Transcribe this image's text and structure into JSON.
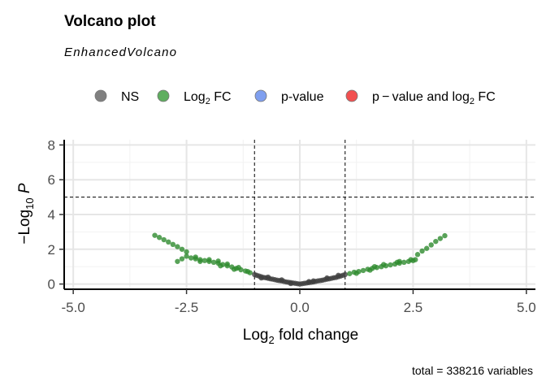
{
  "chart_data": {
    "type": "scatter",
    "title": "Volcano plot",
    "subtitle": "EnhancedVolcano",
    "xlabel": {
      "pre": "Log",
      "sub": "2",
      "post": " fold change"
    },
    "ylabel": {
      "pre": "−Log",
      "sub": "10",
      "post": " P"
    },
    "caption": "total = 338216 variables",
    "xlim": [
      -5.2,
      5.2
    ],
    "ylim": [
      -0.3,
      8.3
    ],
    "x_ticks": [
      -5.0,
      -2.5,
      0.0,
      2.5,
      5.0
    ],
    "x_tick_labels": [
      "-5.0",
      "-2.5",
      "0.0",
      "2.5",
      "5.0"
    ],
    "y_ticks": [
      0,
      2,
      4,
      6,
      8
    ],
    "y_tick_labels": [
      "0",
      "2",
      "4",
      "6",
      "8"
    ],
    "cutoffs": {
      "fc": 1.0,
      "p_log10": 5.0
    },
    "legend_position": "top",
    "legend": [
      {
        "pre": "NS",
        "sub": "",
        "post": "",
        "color": "#808080"
      },
      {
        "pre": "Log",
        "sub": "2",
        "post": " FC",
        "color": "#5fae5f"
      },
      {
        "pre": "p-value",
        "sub": "",
        "post": "",
        "color": "#7f9fef"
      },
      {
        "pre": "p − value and log",
        "sub": "2",
        "post": " FC",
        "color": "#f25050"
      }
    ],
    "series": [
      {
        "name": "NS",
        "color": "#404040",
        "points": [
          [
            -1.0,
            0.55
          ],
          [
            -0.95,
            0.5
          ],
          [
            -0.9,
            0.46
          ],
          [
            -0.85,
            0.42
          ],
          [
            -0.8,
            0.38
          ],
          [
            -0.75,
            0.36
          ],
          [
            -0.7,
            0.33
          ],
          [
            -0.65,
            0.3
          ],
          [
            -0.6,
            0.28
          ],
          [
            -0.55,
            0.25
          ],
          [
            -0.5,
            0.22
          ],
          [
            -0.45,
            0.2
          ],
          [
            -0.4,
            0.18
          ],
          [
            -0.35,
            0.15
          ],
          [
            -0.3,
            0.12
          ],
          [
            -0.25,
            0.1
          ],
          [
            -0.2,
            0.08
          ],
          [
            -0.15,
            0.06
          ],
          [
            -0.1,
            0.04
          ],
          [
            -0.05,
            0.02
          ],
          [
            0.0,
            0.0
          ],
          [
            0.05,
            0.02
          ],
          [
            0.1,
            0.04
          ],
          [
            0.15,
            0.06
          ],
          [
            0.2,
            0.08
          ],
          [
            0.25,
            0.1
          ],
          [
            0.3,
            0.12
          ],
          [
            0.35,
            0.15
          ],
          [
            0.4,
            0.18
          ],
          [
            0.45,
            0.2
          ],
          [
            0.5,
            0.22
          ],
          [
            0.55,
            0.25
          ],
          [
            0.6,
            0.28
          ],
          [
            0.65,
            0.3
          ],
          [
            0.7,
            0.33
          ],
          [
            0.75,
            0.36
          ],
          [
            0.8,
            0.38
          ],
          [
            0.85,
            0.42
          ],
          [
            0.9,
            0.46
          ],
          [
            0.95,
            0.5
          ],
          [
            1.0,
            0.55
          ],
          [
            -0.7,
            0.4
          ],
          [
            -0.4,
            0.24
          ],
          [
            0.3,
            0.18
          ],
          [
            0.6,
            0.35
          ],
          [
            0.85,
            0.5
          ],
          [
            -0.85,
            0.35
          ],
          [
            -0.2,
            0.03
          ],
          [
            0.2,
            0.14
          ]
        ]
      },
      {
        "name": "Log2 FC",
        "color": "#2e8b2e",
        "points": [
          [
            -3.2,
            2.8
          ],
          [
            -3.1,
            2.68
          ],
          [
            -3.0,
            2.55
          ],
          [
            -2.9,
            2.42
          ],
          [
            -2.8,
            2.28
          ],
          [
            -2.7,
            2.15
          ],
          [
            -2.6,
            2.0
          ],
          [
            -2.5,
            1.85
          ],
          [
            -2.5,
            1.6
          ],
          [
            -2.4,
            1.5
          ],
          [
            -2.3,
            1.45
          ],
          [
            -2.2,
            1.4
          ],
          [
            -2.1,
            1.35
          ],
          [
            -2.0,
            1.3
          ],
          [
            -1.9,
            1.25
          ],
          [
            -1.8,
            1.2
          ],
          [
            -1.7,
            1.12
          ],
          [
            -1.6,
            1.05
          ],
          [
            -1.5,
            0.98
          ],
          [
            -1.4,
            0.9
          ],
          [
            -1.3,
            0.82
          ],
          [
            -1.2,
            0.75
          ],
          [
            -1.1,
            0.65
          ],
          [
            -2.6,
            1.45
          ],
          [
            -2.3,
            1.55
          ],
          [
            -2.0,
            1.4
          ],
          [
            -1.8,
            1.32
          ],
          [
            -1.6,
            1.15
          ],
          [
            -1.35,
            0.95
          ],
          [
            -1.15,
            0.72
          ],
          [
            -2.7,
            1.3
          ],
          [
            -2.2,
            1.3
          ],
          [
            -1.75,
            1.05
          ],
          [
            -1.45,
            0.85
          ],
          [
            1.1,
            0.6
          ],
          [
            1.2,
            0.68
          ],
          [
            1.3,
            0.72
          ],
          [
            1.4,
            0.78
          ],
          [
            1.5,
            0.85
          ],
          [
            1.6,
            0.9
          ],
          [
            1.7,
            0.95
          ],
          [
            1.8,
            1.0
          ],
          [
            1.9,
            1.05
          ],
          [
            2.0,
            1.1
          ],
          [
            2.1,
            1.15
          ],
          [
            2.2,
            1.2
          ],
          [
            2.3,
            1.25
          ],
          [
            2.4,
            1.3
          ],
          [
            2.5,
            1.35
          ],
          [
            2.6,
            1.7
          ],
          [
            2.7,
            1.9
          ],
          [
            2.8,
            2.05
          ],
          [
            2.9,
            2.25
          ],
          [
            3.0,
            2.45
          ],
          [
            3.1,
            2.62
          ],
          [
            3.2,
            2.78
          ],
          [
            1.25,
            0.62
          ],
          [
            1.55,
            0.8
          ],
          [
            1.85,
            1.12
          ],
          [
            2.15,
            1.25
          ],
          [
            2.45,
            1.4
          ],
          [
            2.2,
            1.3
          ],
          [
            1.65,
            1.0
          ],
          [
            2.55,
            1.4
          ]
        ]
      }
    ]
  }
}
